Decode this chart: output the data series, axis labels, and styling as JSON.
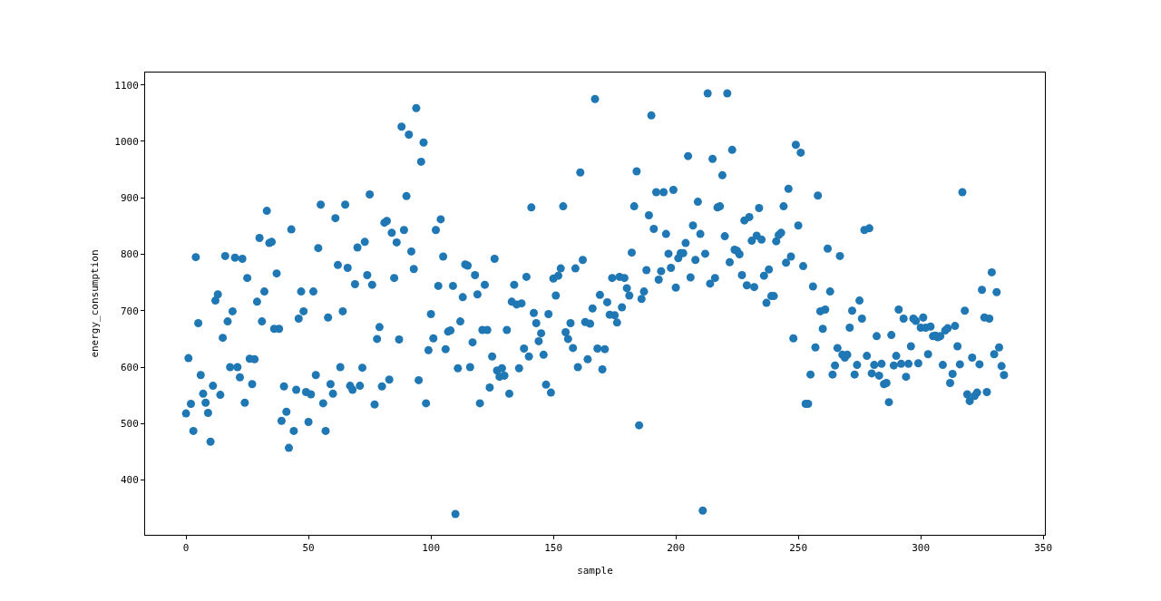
{
  "chart_data": {
    "type": "scatter",
    "xlabel": "sample",
    "ylabel": "energy_consumption",
    "x": [
      0,
      1,
      2,
      3,
      4,
      5,
      6,
      7,
      8,
      9,
      10,
      11,
      12,
      13,
      14,
      15,
      16,
      17,
      18,
      19,
      20,
      21,
      22,
      23,
      24,
      25,
      26,
      27,
      28,
      29,
      30,
      31,
      32,
      33,
      34,
      35,
      36,
      37,
      38,
      39,
      40,
      41,
      42,
      43,
      44,
      45,
      46,
      47,
      48,
      49,
      50,
      51,
      52,
      53,
      54,
      55,
      56,
      57,
      58,
      59,
      60,
      61,
      62,
      63,
      64,
      65,
      66,
      67,
      68,
      69,
      70,
      71,
      72,
      73,
      74,
      75,
      76,
      77,
      78,
      79,
      80,
      81,
      82,
      83,
      84,
      85,
      86,
      87,
      88,
      89,
      90,
      91,
      92,
      93,
      94,
      95,
      96,
      97,
      98,
      99,
      100,
      101,
      102,
      103,
      104,
      105,
      106,
      107,
      108,
      109,
      110,
      111,
      112,
      113,
      114,
      115,
      116,
      117,
      118,
      119,
      120,
      121,
      122,
      123,
      124,
      125,
      126,
      127,
      128,
      129,
      130,
      131,
      132,
      133,
      134,
      135,
      136,
      137,
      138,
      139,
      140,
      141,
      142,
      143,
      144,
      145,
      146,
      147,
      148,
      149,
      150,
      151,
      152,
      153,
      154,
      155,
      156,
      157,
      158,
      159,
      160,
      161,
      162,
      163,
      164,
      165,
      166,
      167,
      168,
      169,
      170,
      171,
      172,
      173,
      174,
      175,
      176,
      177,
      178,
      179,
      180,
      181,
      182,
      183,
      184,
      185,
      186,
      187,
      188,
      189,
      190,
      191,
      192,
      193,
      194,
      195,
      196,
      197,
      198,
      199,
      200,
      201,
      202,
      203,
      204,
      205,
      206,
      207,
      208,
      209,
      210,
      211,
      212,
      213,
      214,
      215,
      216,
      217,
      218,
      219,
      220,
      221,
      222,
      223,
      224,
      225,
      226,
      227,
      228,
      229,
      230,
      231,
      232,
      233,
      234,
      235,
      236,
      237,
      238,
      239,
      240,
      241,
      242,
      243,
      244,
      245,
      246,
      247,
      248,
      249,
      250,
      251,
      252,
      253,
      254,
      255,
      256,
      257,
      258,
      259,
      260,
      261,
      262,
      263,
      264,
      265,
      266,
      267,
      268,
      269,
      270,
      271,
      272,
      273,
      274,
      275,
      276,
      277,
      278,
      279,
      280,
      281,
      282,
      283,
      284,
      285,
      286,
      287,
      288,
      289,
      290,
      291,
      292,
      293,
      294,
      295,
      296,
      297,
      298,
      299,
      300,
      301,
      302,
      303,
      304,
      305,
      306,
      307,
      308,
      309,
      310,
      311,
      312,
      313,
      314,
      315,
      316,
      317,
      318,
      319,
      320,
      321,
      322,
      323,
      324,
      325,
      326,
      327,
      328,
      329,
      330,
      331,
      332,
      333,
      334
    ],
    "series": [
      {
        "color": "#1f77b4",
        "values": [
          518,
          616,
          535,
          487,
          795,
          678,
          586,
          553,
          537,
          519,
          468,
          567,
          718,
          729,
          551,
          652,
          797,
          681,
          600,
          699,
          794,
          600,
          582,
          792,
          537,
          758,
          615,
          570,
          614,
          716,
          829,
          681,
          734,
          877,
          820,
          822,
          668,
          766,
          668,
          505,
          566,
          521,
          457,
          844,
          487,
          560,
          686,
          734,
          699,
          556,
          503,
          552,
          734,
          586,
          811,
          888,
          536,
          487,
          688,
          570,
          553,
          864,
          781,
          600,
          699,
          888,
          776,
          567,
          560,
          747,
          812,
          567,
          599,
          822,
          763,
          906,
          746,
          534,
          650,
          671,
          566,
          856,
          859,
          578,
          838,
          758,
          821,
          649,
          1026,
          843,
          903,
          1012,
          805,
          774,
          1059,
          577,
          964,
          998,
          536,
          630,
          694,
          651,
          843,
          744,
          862,
          796,
          632,
          663,
          665,
          744,
          340,
          598,
          681,
          724,
          782,
          780,
          600,
          644,
          763,
          729,
          536,
          666,
          746,
          666,
          564,
          619,
          792,
          594,
          583,
          598,
          585,
          666,
          553,
          716,
          746,
          711,
          598,
          713,
          633,
          760,
          619,
          883,
          696,
          678,
          646,
          660,
          622,
          569,
          694,
          555,
          757,
          727,
          762,
          775,
          885,
          662,
          650,
          678,
          634,
          775,
          600,
          945,
          790,
          680,
          614,
          677,
          704,
          1075,
          633,
          728,
          596,
          632,
          715,
          693,
          758,
          692,
          679,
          760,
          706,
          758,
          740,
          727,
          803,
          885,
          947,
          497,
          721,
          734,
          772,
          869,
          1046,
          845,
          910,
          755,
          770,
          910,
          836,
          801,
          776,
          914,
          741,
          793,
          802,
          802,
          820,
          974,
          759,
          851,
          790,
          893,
          836,
          346,
          801,
          1085,
          748,
          969,
          758,
          883,
          885,
          940,
          832,
          1085,
          786,
          985,
          808,
          806,
          800,
          763,
          860,
          745,
          866,
          824,
          742,
          833,
          882,
          826,
          762,
          714,
          773,
          726,
          726,
          823,
          834,
          838,
          885,
          785,
          916,
          796,
          651,
          994,
          851,
          980,
          779,
          535,
          535,
          587,
          743,
          635,
          904,
          699,
          668,
          702,
          810,
          734,
          587,
          603,
          634,
          797,
          622,
          617,
          622,
          670,
          700,
          587,
          604,
          718,
          686,
          843,
          620,
          846,
          589,
          604,
          655,
          585,
          606,
          570,
          572,
          538,
          657,
          603,
          620,
          702,
          606,
          686,
          583,
          606,
          637,
          686,
          682,
          607,
          670,
          688,
          670,
          623,
          672,
          655,
          656,
          653,
          655,
          604,
          665,
          669,
          572,
          588,
          673,
          637,
          605,
          910,
          700,
          552,
          540,
          617,
          549,
          555,
          605,
          737,
          688,
          556,
          686,
          768,
          623,
          733,
          635,
          602,
          586
        ]
      }
    ],
    "xlim": [
      -16.7,
      350.7
    ],
    "ylim": [
      303,
      1122
    ],
    "xticks": [
      0,
      50,
      100,
      150,
      200,
      250,
      300,
      350
    ],
    "yticks": [
      400,
      500,
      600,
      700,
      800,
      900,
      1000,
      1100
    ],
    "marker": "circle"
  }
}
